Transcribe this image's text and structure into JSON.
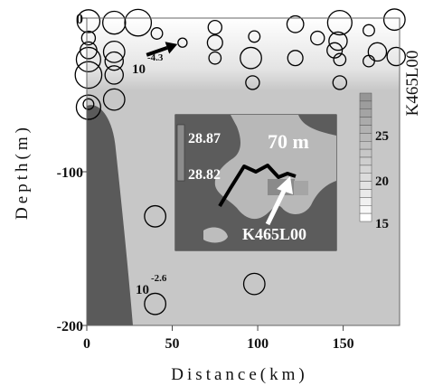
{
  "chart_data": {
    "type": "scatter",
    "xlabel": "Distance(km)",
    "ylabel": "Depth(m)",
    "xlim": [
      0,
      183
    ],
    "ylim": [
      -200,
      0
    ],
    "x_ticks": [
      "0",
      "50",
      "100",
      "150"
    ],
    "y_ticks": [
      "0",
      "-100",
      "-200"
    ],
    "right_label": "K465L00",
    "legend_values": [
      {
        "base": "10",
        "exponent": "-4.3"
      },
      {
        "base": "10",
        "exponent": "-2.6"
      }
    ],
    "points": [
      {
        "x": 1,
        "y": -2,
        "size": 3.0
      },
      {
        "x": 16,
        "y": -3,
        "size": 3.0
      },
      {
        "x": 30,
        "y": -3,
        "size": 3.5
      },
      {
        "x": 75,
        "y": -6,
        "size": 1.8
      },
      {
        "x": 122,
        "y": -4,
        "size": 2.2
      },
      {
        "x": 148,
        "y": -3,
        "size": 3.2
      },
      {
        "x": 180,
        "y": -1,
        "size": 2.8
      },
      {
        "x": 1,
        "y": -13,
        "size": 1.8
      },
      {
        "x": 41,
        "y": -10,
        "size": 1.5
      },
      {
        "x": 98,
        "y": -12,
        "size": 1.5
      },
      {
        "x": 135,
        "y": -13,
        "size": 1.8
      },
      {
        "x": 165,
        "y": -8,
        "size": 1.5
      },
      {
        "x": 56,
        "y": -16,
        "size": 1.2
      },
      {
        "x": 75,
        "y": -16,
        "size": 2.0
      },
      {
        "x": 147,
        "y": -15,
        "size": 2.4
      },
      {
        "x": 1,
        "y": -21,
        "size": 2.2
      },
      {
        "x": 16,
        "y": -22,
        "size": 2.8
      },
      {
        "x": 145,
        "y": -21,
        "size": 2.0
      },
      {
        "x": 170,
        "y": -22,
        "size": 2.4
      },
      {
        "x": 1,
        "y": -27,
        "size": 3.2
      },
      {
        "x": 16,
        "y": -28,
        "size": 2.4
      },
      {
        "x": 75,
        "y": -26,
        "size": 1.6
      },
      {
        "x": 96,
        "y": -26,
        "size": 2.8
      },
      {
        "x": 122,
        "y": -26,
        "size": 2.0
      },
      {
        "x": 148,
        "y": -27,
        "size": 1.6
      },
      {
        "x": 165,
        "y": -28,
        "size": 1.5
      },
      {
        "x": 181,
        "y": -25,
        "size": 2.4
      },
      {
        "x": 1,
        "y": -37,
        "size": 3.5
      },
      {
        "x": 16,
        "y": -37,
        "size": 2.4
      },
      {
        "x": 97,
        "y": -42,
        "size": 1.8
      },
      {
        "x": 148,
        "y": -42,
        "size": 1.8
      },
      {
        "x": 1,
        "y": -56,
        "size": 1.4
      },
      {
        "x": 16,
        "y": -53,
        "size": 2.8
      },
      {
        "x": 1,
        "y": -58,
        "size": 3.2
      },
      {
        "x": 40,
        "y": -129,
        "size": 2.8
      },
      {
        "x": 98,
        "y": -173,
        "size": 2.8
      },
      {
        "x": 40,
        "y": -186,
        "size": 2.8
      }
    ],
    "arrow": {
      "x1": 35,
      "y1": -24,
      "x2": 53,
      "y2": -17
    },
    "inset": {
      "title": "70 m",
      "station": "K465L00",
      "contour_labels": [
        "28.87",
        "28.82"
      ],
      "scale_ticks": [
        "25",
        "20",
        "15"
      ]
    }
  }
}
